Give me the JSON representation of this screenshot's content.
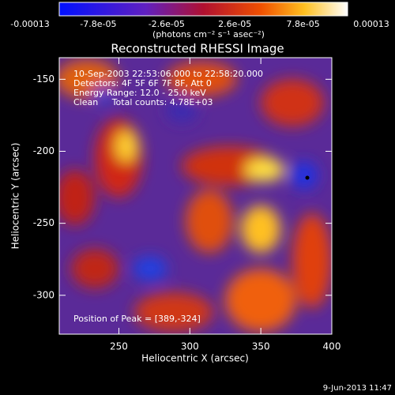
{
  "chart_data": {
    "type": "heatmap",
    "title": "Reconstructed RHESSI Image",
    "xlabel": "Heliocentric X (arcsec)",
    "ylabel": "Heliocentric Y (arcsec)",
    "xlim": [
      208,
      400
    ],
    "ylim": [
      -327,
      -135
    ],
    "xticks": [
      250,
      300,
      350,
      400
    ],
    "yticks": [
      -150,
      -200,
      -250,
      -300
    ],
    "colorbar": {
      "lim": [
        -0.00013,
        0.00013
      ],
      "ticks": [
        -0.00013,
        {
          "value": -7.8e-05,
          "label": "-7.8e-05"
        },
        {
          "value": -2.6e-05,
          "label": "-2.6e-05"
        },
        {
          "value": 2.6e-05,
          "label": "2.6e-05"
        },
        {
          "value": 7.8e-05,
          "label": "7.8e-05"
        },
        0.00013
      ],
      "label": "(photons cm⁻² s⁻¹ asec⁻²)"
    },
    "annotations": [
      "10-Sep-2003 22:53:06.000 to 22:58:20.000",
      "Detectors: 4F 5F 6F 7F 8F, Att 0",
      "Energy Range: 12.0 - 25.0 keV",
      "Clean     Total counts: 4.78E+03",
      "Position of Peak = [389,-324]"
    ],
    "footer": "9-Jun-2013 11:47"
  }
}
